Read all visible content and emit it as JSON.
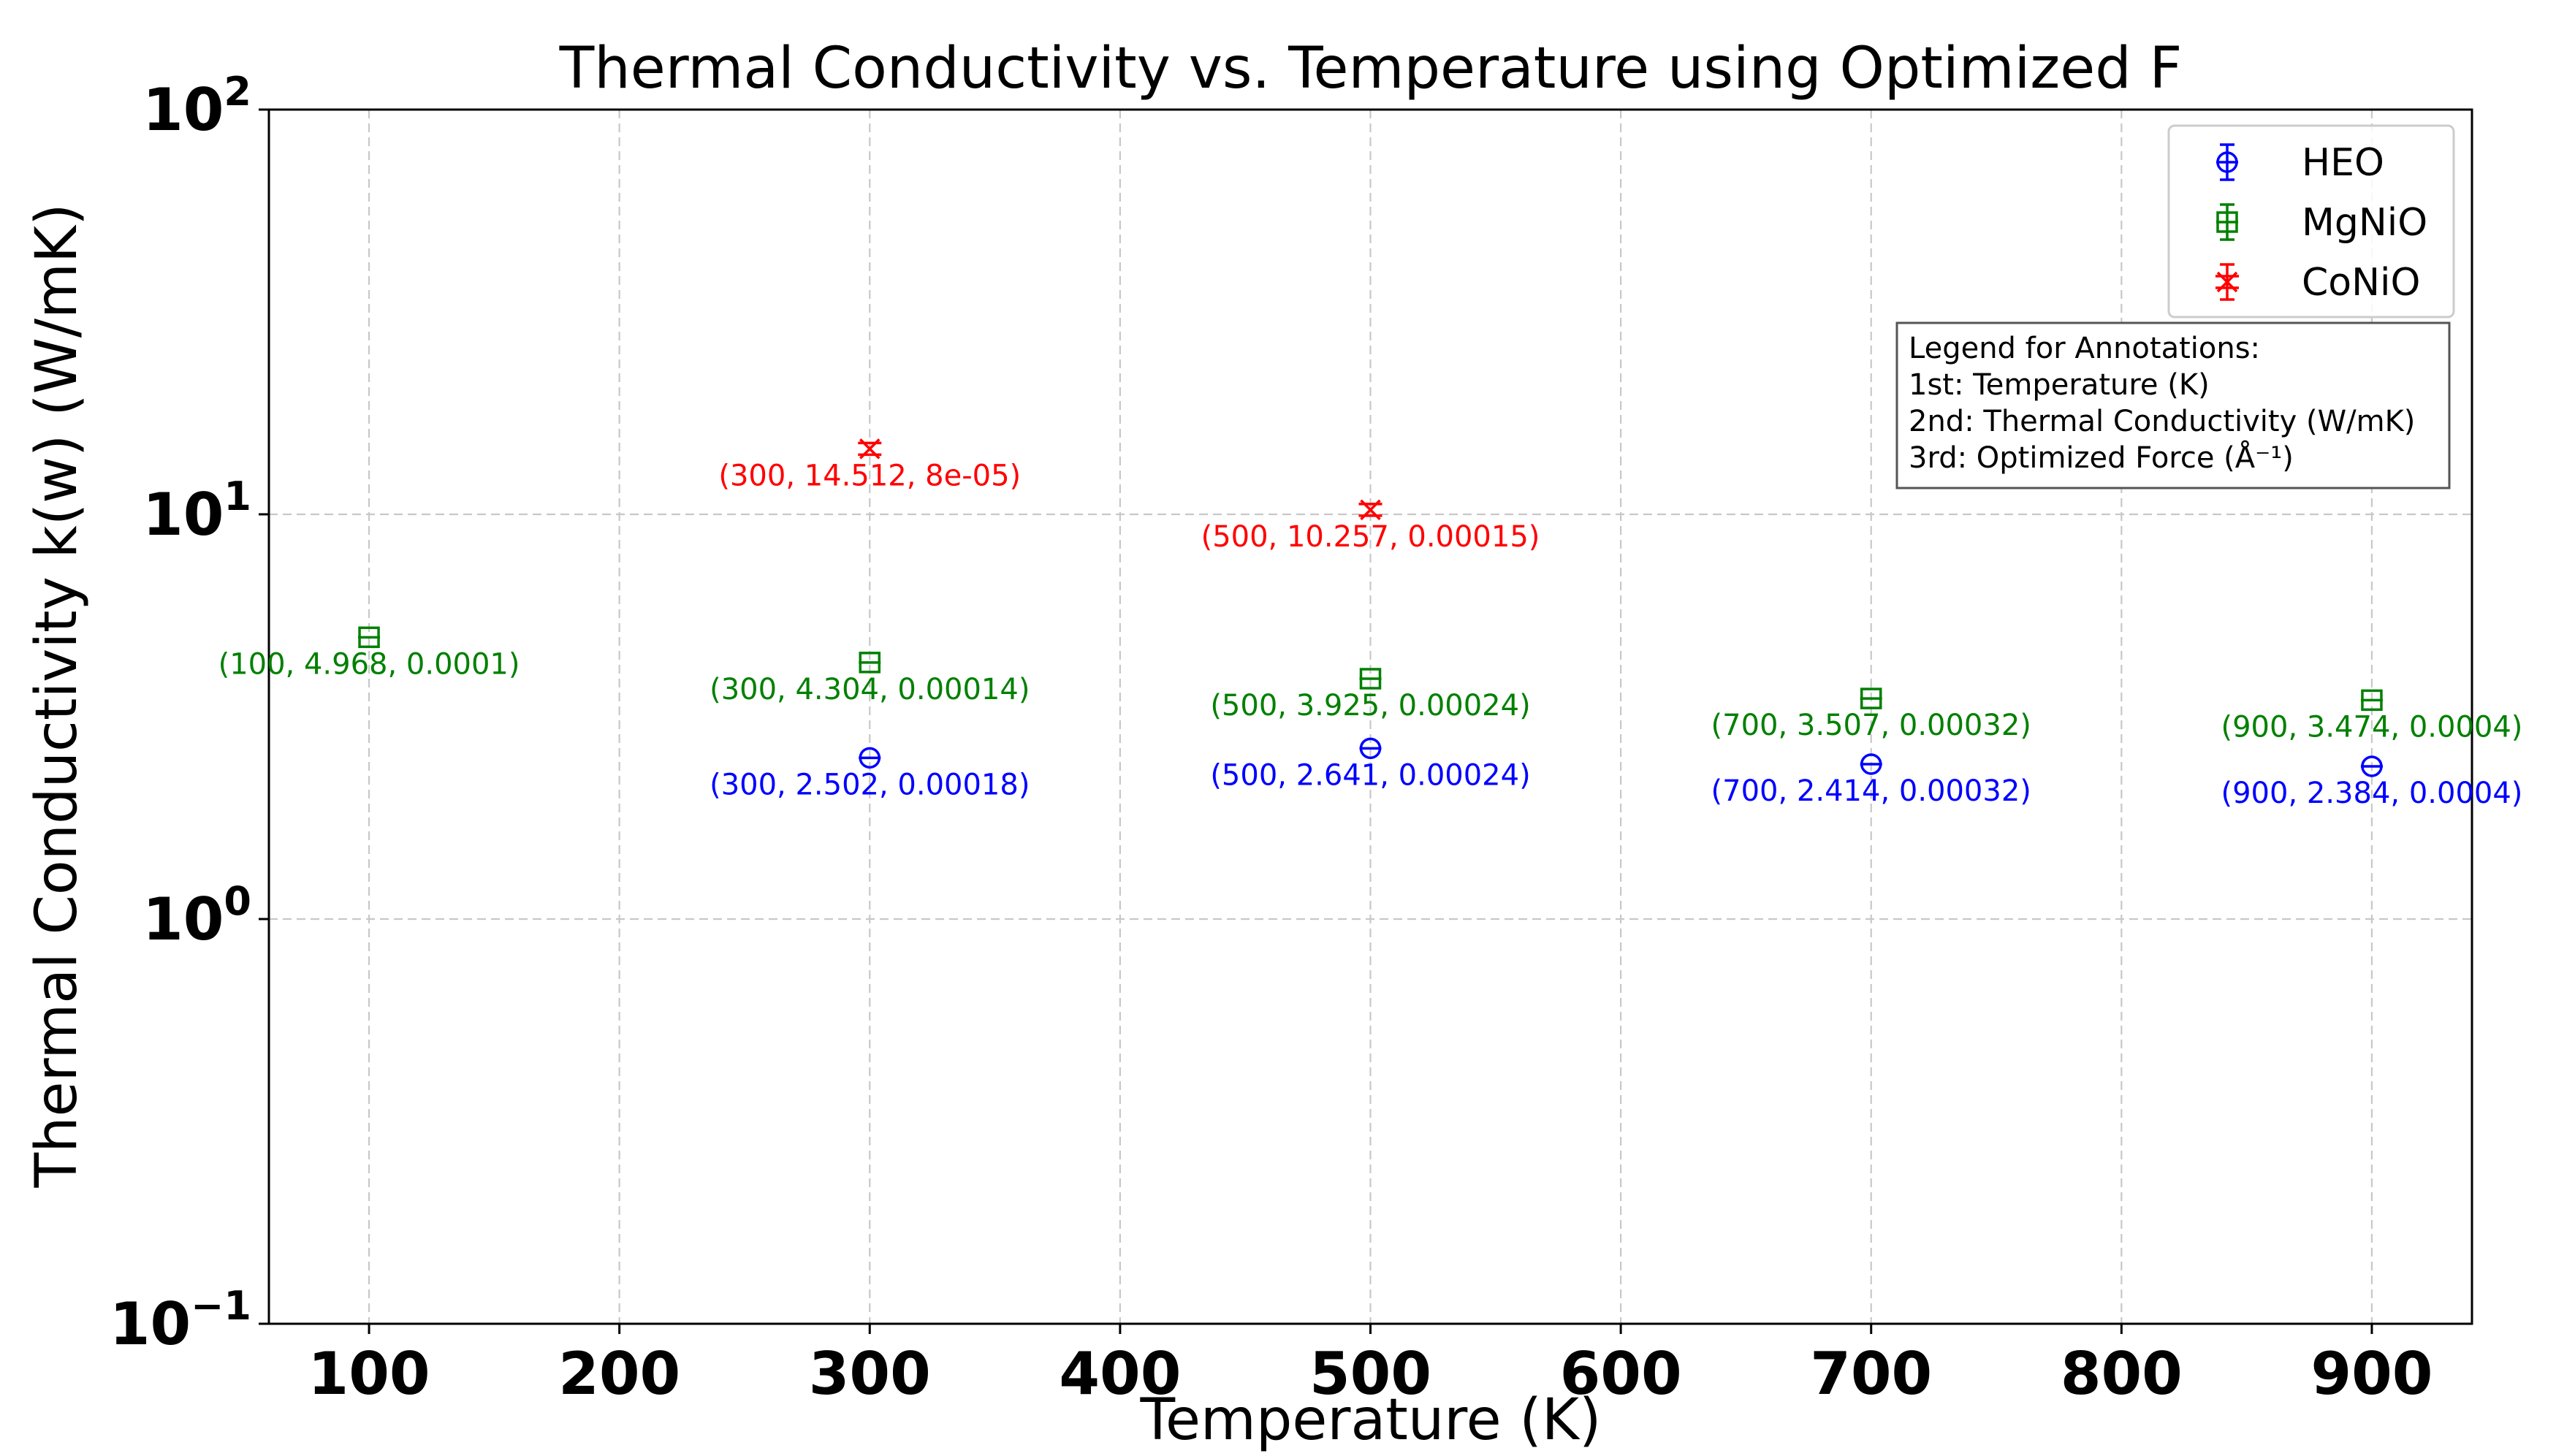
{
  "chart_data": {
    "type": "scatter",
    "title": "Thermal Conductivity vs. Temperature using Optimized F",
    "xlabel": "Temperature (K)",
    "ylabel": "Thermal Conductivity k(w) (W/mK)",
    "xlim": [
      60,
      940
    ],
    "ylim": [
      0.1,
      100
    ],
    "yscale": "log",
    "grid": true,
    "legend_position": "top-right",
    "xticks": [
      {
        "value": 100,
        "label": "100"
      },
      {
        "value": 200,
        "label": "200"
      },
      {
        "value": 300,
        "label": "300"
      },
      {
        "value": 400,
        "label": "400"
      },
      {
        "value": 500,
        "label": "500"
      },
      {
        "value": 600,
        "label": "600"
      },
      {
        "value": 700,
        "label": "700"
      },
      {
        "value": 800,
        "label": "800"
      },
      {
        "value": 900,
        "label": "900"
      }
    ],
    "yticks": [
      {
        "value": 0.1,
        "base": "10",
        "exp": "−1"
      },
      {
        "value": 1,
        "base": "10",
        "exp": "0"
      },
      {
        "value": 10,
        "base": "10",
        "exp": "1"
      },
      {
        "value": 100,
        "base": "10",
        "exp": "2"
      }
    ],
    "series": [
      {
        "name": "HEO",
        "color": "#0000ff",
        "marker": "circle",
        "points": [
          {
            "x": 300,
            "y": 2.502,
            "label": "(300, 2.502, 0.00018)"
          },
          {
            "x": 500,
            "y": 2.641,
            "label": "(500, 2.641, 0.00024)"
          },
          {
            "x": 700,
            "y": 2.414,
            "label": "(700, 2.414, 0.00032)"
          },
          {
            "x": 900,
            "y": 2.384,
            "label": "(900, 2.384, 0.0004)"
          }
        ]
      },
      {
        "name": "MgNiO",
        "color": "#008000",
        "marker": "square",
        "points": [
          {
            "x": 100,
            "y": 4.968,
            "label": "(100, 4.968, 0.0001)"
          },
          {
            "x": 300,
            "y": 4.304,
            "label": "(300, 4.304, 0.00014)"
          },
          {
            "x": 500,
            "y": 3.925,
            "label": "(500, 3.925, 0.00024)"
          },
          {
            "x": 700,
            "y": 3.507,
            "label": "(700, 3.507, 0.00032)"
          },
          {
            "x": 900,
            "y": 3.474,
            "label": "(900, 3.474, 0.0004)"
          }
        ]
      },
      {
        "name": "CoNiO",
        "color": "#ff0000",
        "marker": "x",
        "points": [
          {
            "x": 300,
            "y": 14.512,
            "label": "(300, 14.512, 8e-05)"
          },
          {
            "x": 500,
            "y": 10.257,
            "label": "(500, 10.257, 0.00015)"
          }
        ]
      }
    ],
    "annotation_legend": [
      "Legend for Annotations:",
      "1st: Temperature (K)",
      "2nd: Thermal Conductivity (W/mK)",
      "3rd: Optimized Force (Å⁻¹)"
    ]
  }
}
